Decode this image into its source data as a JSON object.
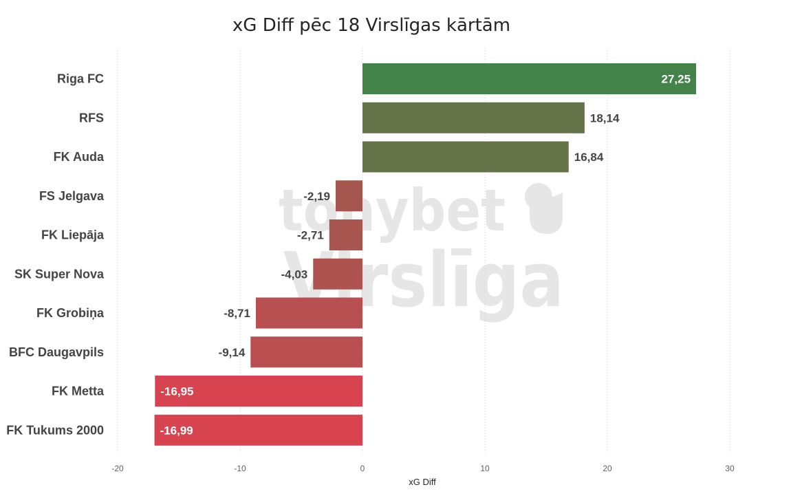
{
  "title": "xG Diff pēc 18 Virslīgas kārtām",
  "watermark": {
    "line1": "tonybet",
    "line2": "Virslīga"
  },
  "chart_data": {
    "type": "bar",
    "orientation": "horizontal",
    "title": "xG Diff pēc 18 Virslīgas kārtām",
    "xlabel": "xG Diff",
    "ylabel": "",
    "xlim": [
      -20,
      30
    ],
    "xticks": [
      -20,
      -10,
      0,
      10,
      20,
      30
    ],
    "xtick_labels": [
      "-20",
      "-10",
      "0",
      "10",
      "20",
      "30"
    ],
    "grid": "vertical dotted",
    "categories": [
      "Riga FC",
      "RFS",
      "FK Auda",
      "FS Jelgava",
      "FK Liepāja",
      "SK Super Nova",
      "FK Grobiņa",
      "BFC Daugavpils",
      "FK Metta",
      "FK Tukums 2000"
    ],
    "values": [
      27.25,
      18.14,
      16.84,
      -2.19,
      -2.71,
      -4.03,
      -8.71,
      -9.14,
      -16.95,
      -16.99
    ],
    "value_labels": [
      "27,25",
      "18,14",
      "16,84",
      "-2,19",
      "-2,71",
      "-4,03",
      "-8,71",
      "-9,14",
      "-16,95",
      "-16,99"
    ],
    "colors": [
      "#43834A",
      "#657349",
      "#657349",
      "#A5564E",
      "#A8564F",
      "#AE5350",
      "#B84F51",
      "#B94F51",
      "#D84350",
      "#D84350"
    ],
    "label_inside": [
      true,
      false,
      false,
      false,
      false,
      false,
      false,
      false,
      true,
      true
    ]
  }
}
